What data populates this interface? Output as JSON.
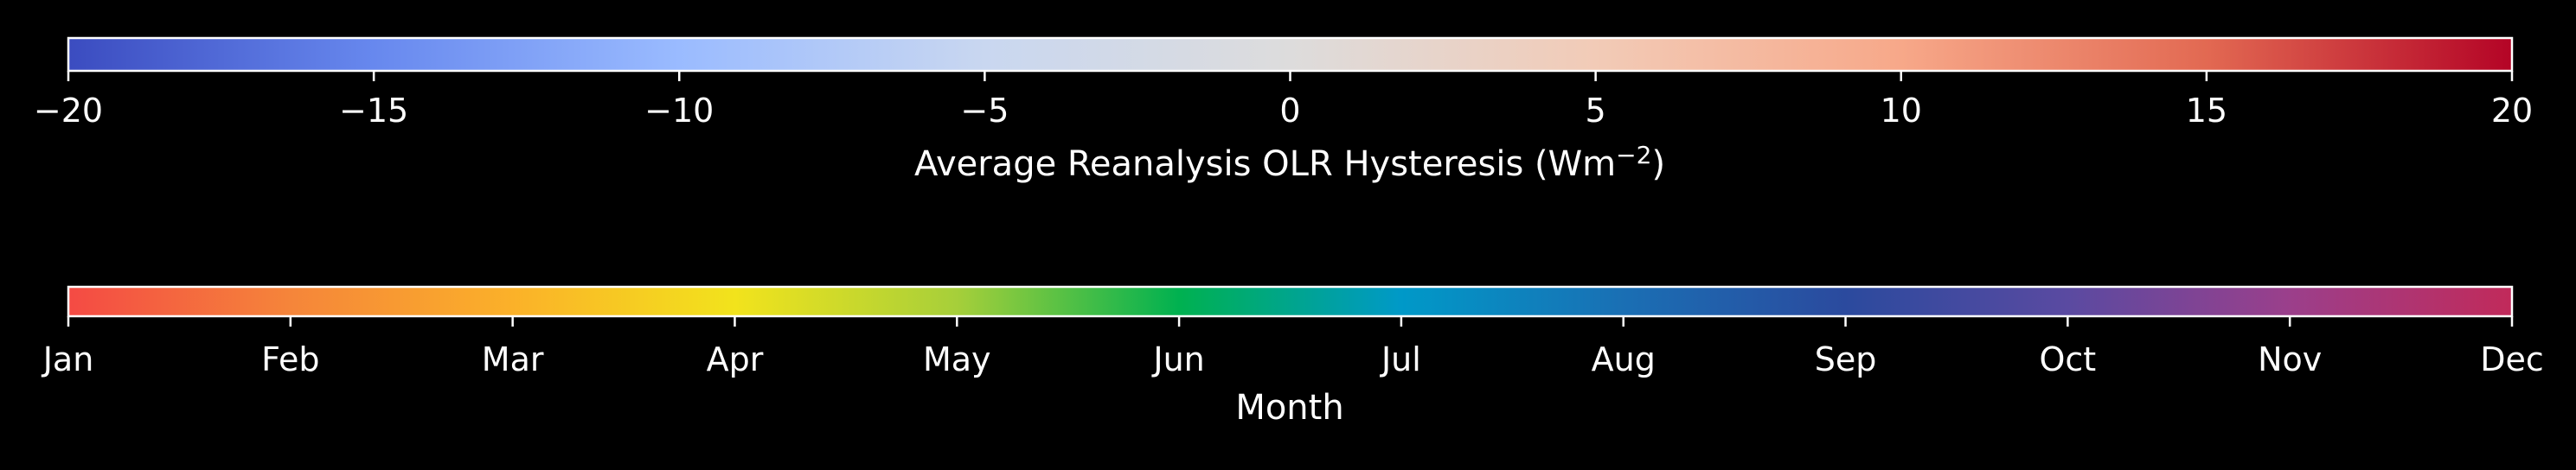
{
  "chart_data": [
    {
      "type": "colorbar",
      "orientation": "horizontal",
      "label": "Average Reanalysis OLR Hysteresis (Wm",
      "label_superscript": "−2",
      "label_close": ")",
      "range": [
        -20,
        20
      ],
      "ticks": [
        -20,
        -15,
        -10,
        -5,
        0,
        5,
        10,
        15,
        20
      ],
      "tick_labels": [
        "−20",
        "−15",
        "−10",
        "−5",
        "0",
        "5",
        "10",
        "15",
        "20"
      ],
      "colormap": "coolwarm",
      "color_stops": [
        "#3b4cc0",
        "#6788ee",
        "#9abbff",
        "#c9d7f0",
        "#dddcdc",
        "#f2cbb7",
        "#f7a889",
        "#e26952",
        "#b40426"
      ]
    },
    {
      "type": "colorbar",
      "orientation": "horizontal",
      "label": "Month",
      "range": [
        0,
        11
      ],
      "ticks": [
        0,
        1,
        2,
        3,
        4,
        5,
        6,
        7,
        8,
        9,
        10,
        11
      ],
      "tick_labels": [
        "Jan",
        "Feb",
        "Mar",
        "Apr",
        "May",
        "Jun",
        "Jul",
        "Aug",
        "Sep",
        "Oct",
        "Nov",
        "Dec"
      ],
      "colormap": "cyclic-spectral",
      "color_stops": [
        "#f44a44",
        "#f5853a",
        "#fbb129",
        "#f2e31c",
        "#a6cf3a",
        "#00b150",
        "#0099c8",
        "#1a6fb4",
        "#2b4a9e",
        "#5a4aa1",
        "#9b3f8b",
        "#c12a5a"
      ]
    }
  ]
}
